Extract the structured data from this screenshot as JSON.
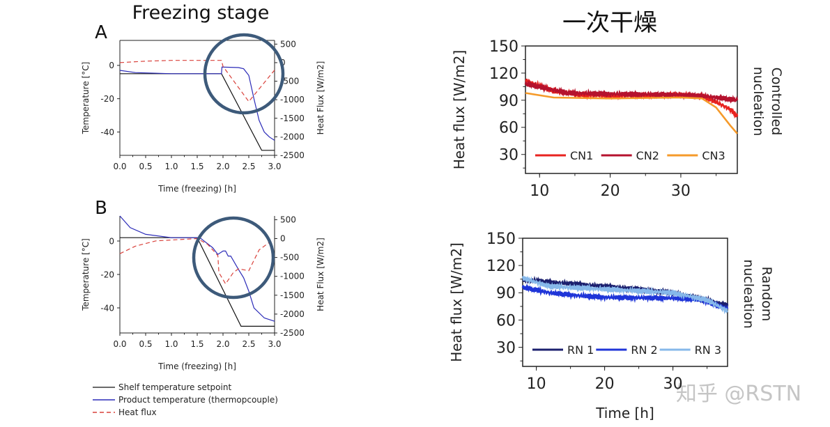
{
  "titles": {
    "left": "Freezing stage",
    "right": "一次干燥"
  },
  "watermark": "知乎 @RSTN",
  "colors": {
    "shelf": "#111111",
    "product": "#2b2bb8",
    "heat_flux": "#d9403a",
    "circle": "#3d5a7a",
    "CN1": "#e8231f",
    "CN2": "#b5122e",
    "CN3": "#f59a2a",
    "RN1": "#1b1f6e",
    "RN2": "#1f35d8",
    "RN3": "#86b8ea"
  },
  "legend_left": [
    "Shelf temperature setpoint",
    "Product temperature (thermopcouple)",
    "Heat flux"
  ],
  "chart_data": [
    {
      "id": "A",
      "panel_label": "A",
      "type": "line",
      "xlabel": "Time (freezing) [h]",
      "ylabel": "Temperature [°C]",
      "y2label": "Heat Flux [W/m2]",
      "xlim": [
        0,
        3
      ],
      "ylim": [
        -54,
        15
      ],
      "y2lim": [
        -2500,
        600
      ],
      "xticks": [
        "0.0",
        "0.5",
        "1.0",
        "1.5",
        "2.0",
        "2.5",
        "3.0"
      ],
      "yticks": [
        0,
        -20,
        -40
      ],
      "y2ticks": [
        500,
        0,
        -500,
        -1000,
        -1500,
        -2000,
        -2500
      ],
      "highlight_circle": true,
      "series": [
        {
          "name": "Shelf temperature setpoint",
          "axis": "y",
          "style": "solid",
          "color_key": "shelf",
          "points": [
            [
              0,
              -5
            ],
            [
              1.97,
              -5
            ],
            [
              2.75,
              -51
            ],
            [
              3,
              -51
            ]
          ]
        },
        {
          "name": "Product temperature (thermopcouple)",
          "axis": "y",
          "style": "solid",
          "color_key": "product",
          "points": [
            [
              0,
              -3
            ],
            [
              0.3,
              -4.3
            ],
            [
              1,
              -5
            ],
            [
              1.97,
              -5
            ],
            [
              1.98,
              -1
            ],
            [
              2.3,
              -1.3
            ],
            [
              2.4,
              -2
            ],
            [
              2.5,
              -6
            ],
            [
              2.6,
              -20
            ],
            [
              2.7,
              -33
            ],
            [
              2.8,
              -40
            ],
            [
              2.9,
              -43
            ],
            [
              3,
              -45
            ]
          ]
        },
        {
          "name": "Heat flux",
          "axis": "y2",
          "style": "dashed",
          "color_key": "heat_flux",
          "points": [
            [
              0,
              0
            ],
            [
              0.5,
              40
            ],
            [
              1,
              60
            ],
            [
              1.97,
              60
            ],
            [
              2.0,
              -100
            ],
            [
              2.5,
              -1050
            ],
            [
              3,
              -200
            ]
          ]
        }
      ]
    },
    {
      "id": "B",
      "panel_label": "B",
      "type": "line",
      "xlabel": "Time (freezing) [h]",
      "ylabel": "Temperature [°C]",
      "y2label": "Heat Flux [W/m2]",
      "xlim": [
        0,
        3
      ],
      "ylim": [
        -55,
        15
      ],
      "y2lim": [
        -2500,
        600
      ],
      "xticks": [
        "0.0",
        "0.5",
        "1.0",
        "1.5",
        "2.0",
        "2.5",
        "3.0"
      ],
      "yticks": [
        0,
        -20,
        -40
      ],
      "y2ticks": [
        500,
        0,
        -500,
        -1000,
        -1500,
        -2000,
        -2500
      ],
      "highlight_circle": true,
      "series": [
        {
          "name": "Shelf temperature setpoint",
          "axis": "y",
          "style": "solid",
          "color_key": "shelf",
          "points": [
            [
              0,
              2
            ],
            [
              1.5,
              2
            ],
            [
              2.35,
              -51
            ],
            [
              3,
              -51
            ]
          ]
        },
        {
          "name": "Product temperature (thermopcouple)",
          "axis": "y",
          "style": "solid",
          "color_key": "product",
          "points": [
            [
              0,
              15
            ],
            [
              0.2,
              8
            ],
            [
              0.5,
              4
            ],
            [
              1,
              2
            ],
            [
              1.55,
              2
            ],
            [
              1.8,
              -4
            ],
            [
              1.9,
              -8
            ],
            [
              2.0,
              -6
            ],
            [
              2.05,
              -6
            ],
            [
              2.1,
              -9
            ],
            [
              2.15,
              -9
            ],
            [
              2.3,
              -17
            ],
            [
              2.4,
              -22
            ],
            [
              2.5,
              -30
            ],
            [
              2.6,
              -40
            ],
            [
              2.8,
              -46
            ],
            [
              3,
              -48
            ]
          ]
        },
        {
          "name": "Heat flux",
          "axis": "y2",
          "style": "dashed",
          "color_key": "heat_flux",
          "points": [
            [
              0,
              -400
            ],
            [
              0.3,
              -200
            ],
            [
              0.7,
              -60
            ],
            [
              1.5,
              0
            ],
            [
              1.7,
              -150
            ],
            [
              1.9,
              -450
            ],
            [
              1.92,
              -900
            ],
            [
              2.05,
              -1200
            ],
            [
              2.2,
              -900
            ],
            [
              2.3,
              -800
            ],
            [
              2.5,
              -850
            ],
            [
              2.7,
              -300
            ],
            [
              2.9,
              -100
            ]
          ]
        }
      ]
    },
    {
      "id": "C",
      "type": "line",
      "side_label": [
        "Controlled",
        "nucleation"
      ],
      "xlabel": "",
      "ylabel": "Heat flux [W/m2]",
      "xlim": [
        8,
        38
      ],
      "ylim": [
        9,
        150
      ],
      "xticks": [
        "10",
        "20",
        "30"
      ],
      "yticks": [
        150,
        120,
        90,
        60,
        30
      ],
      "legend": "bottom",
      "series": [
        {
          "name": "CN1",
          "color_key": "CN1",
          "noisy": true,
          "points": [
            [
              8,
              112
            ],
            [
              12,
              100
            ],
            [
              16,
              96
            ],
            [
              20,
              95
            ],
            [
              30,
              96
            ],
            [
              33,
              95
            ],
            [
              35,
              88
            ],
            [
              37,
              80
            ],
            [
              38,
              72
            ]
          ]
        },
        {
          "name": "CN2",
          "color_key": "CN2",
          "noisy": true,
          "points": [
            [
              8,
              108
            ],
            [
              14,
              98
            ],
            [
              20,
              97
            ],
            [
              30,
              96
            ],
            [
              34,
              94
            ],
            [
              38,
              90
            ]
          ]
        },
        {
          "name": "CN3",
          "color_key": "CN3",
          "noisy": false,
          "points": [
            [
              8,
              98
            ],
            [
              12,
              93
            ],
            [
              20,
              92
            ],
            [
              30,
              93
            ],
            [
              33,
              92
            ],
            [
              35,
              82
            ],
            [
              37,
              62
            ],
            [
              38,
              53
            ]
          ]
        }
      ]
    },
    {
      "id": "D",
      "type": "line",
      "side_label": [
        "Random",
        "nucleation"
      ],
      "xlabel": "Time [h]",
      "ylabel": "Heat flux [W/m2]",
      "xlim": [
        8,
        38
      ],
      "ylim": [
        9,
        150
      ],
      "xticks": [
        "10",
        "20",
        "30"
      ],
      "yticks": [
        150,
        120,
        90,
        60,
        30
      ],
      "legend": "bottom",
      "series": [
        {
          "name": "RN 1",
          "color_key": "RN1",
          "noisy": true,
          "points": [
            [
              8,
              104
            ],
            [
              15,
              100
            ],
            [
              20,
              97
            ],
            [
              25,
              94
            ],
            [
              30,
              90
            ],
            [
              35,
              82
            ],
            [
              38,
              76
            ]
          ]
        },
        {
          "name": "RN 2",
          "color_key": "RN2",
          "noisy": true,
          "points": [
            [
              8,
              96
            ],
            [
              12,
              90
            ],
            [
              16,
              87
            ],
            [
              20,
              85
            ],
            [
              30,
              84
            ],
            [
              33,
              83
            ],
            [
              35,
              80
            ],
            [
              38,
              72
            ]
          ]
        },
        {
          "name": "RN 3",
          "color_key": "RN3",
          "noisy": true,
          "points": [
            [
              8,
              106
            ],
            [
              12,
              97
            ],
            [
              20,
              94
            ],
            [
              30,
              90
            ],
            [
              35,
              82
            ],
            [
              38,
              70
            ]
          ]
        }
      ]
    }
  ]
}
